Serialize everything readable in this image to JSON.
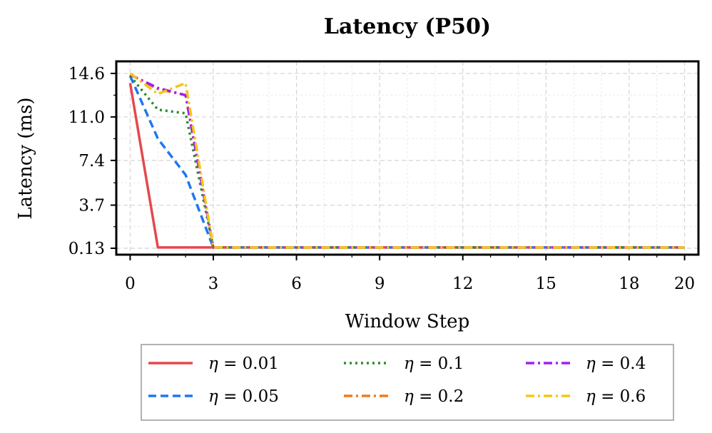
{
  "chart_data": {
    "type": "line",
    "title": "Latency (P50)",
    "xlabel": "Window Step",
    "ylabel": "Latency (ms)",
    "xlim": [
      -0.5,
      20.5
    ],
    "ylim": [
      -0.4,
      15.6
    ],
    "xticks": [
      0,
      3,
      6,
      9,
      12,
      15,
      18,
      20
    ],
    "yticks": [
      0.13,
      3.7,
      7.4,
      11.0,
      14.6
    ],
    "ytick_labels": [
      "0.13",
      "3.7",
      "7.4",
      "11.0",
      "14.6"
    ],
    "grid": true,
    "legend_position": "bottom-center, outside",
    "legend_prefix": "η = ",
    "x": [
      0,
      1,
      2,
      3,
      4,
      5,
      6,
      7,
      8,
      9,
      10,
      11,
      12,
      13,
      14,
      15,
      16,
      17,
      18,
      19,
      20
    ],
    "series": [
      {
        "name": "0.01",
        "color": "#e5484d",
        "dash": "solid",
        "values": [
          13.8,
          0.2,
          0.2,
          0.2,
          0.2,
          0.2,
          0.2,
          0.2,
          0.2,
          0.2,
          0.2,
          0.2,
          0.2,
          0.2,
          0.2,
          0.2,
          0.2,
          0.2,
          0.2,
          0.2,
          0.2
        ]
      },
      {
        "name": "0.05",
        "color": "#1f77f0",
        "dash": "dashed",
        "values": [
          14.4,
          9.2,
          6.2,
          0.2,
          0.2,
          0.2,
          0.2,
          0.2,
          0.2,
          0.2,
          0.2,
          0.2,
          0.2,
          0.2,
          0.2,
          0.2,
          0.2,
          0.2,
          0.2,
          0.2,
          0.2
        ]
      },
      {
        "name": "0.1",
        "color": "#2e8b2e",
        "dash": "dotted",
        "values": [
          14.4,
          11.6,
          11.3,
          0.2,
          0.2,
          0.2,
          0.2,
          0.2,
          0.2,
          0.2,
          0.2,
          0.2,
          0.2,
          0.2,
          0.2,
          0.2,
          0.2,
          0.2,
          0.2,
          0.2,
          0.2
        ]
      },
      {
        "name": "0.2",
        "color": "#f07a1a",
        "dash": "dashdot",
        "values": [
          14.5,
          13.3,
          12.8,
          0.2,
          0.2,
          0.2,
          0.2,
          0.2,
          0.2,
          0.2,
          0.2,
          0.2,
          0.2,
          0.2,
          0.2,
          0.2,
          0.2,
          0.2,
          0.2,
          0.2,
          0.2
        ]
      },
      {
        "name": "0.4",
        "color": "#a020f0",
        "dash": "dashdot",
        "values": [
          14.5,
          13.4,
          12.8,
          0.2,
          0.2,
          0.2,
          0.2,
          0.2,
          0.2,
          0.2,
          0.2,
          0.2,
          0.2,
          0.2,
          0.2,
          0.2,
          0.2,
          0.2,
          0.2,
          0.2,
          0.2
        ]
      },
      {
        "name": "0.6",
        "color": "#f5c518",
        "dash": "dashdot",
        "values": [
          14.6,
          12.9,
          13.8,
          0.2,
          0.2,
          0.2,
          0.2,
          0.2,
          0.2,
          0.2,
          0.2,
          0.2,
          0.2,
          0.2,
          0.2,
          0.2,
          0.2,
          0.2,
          0.2,
          0.2,
          0.2
        ]
      }
    ]
  }
}
